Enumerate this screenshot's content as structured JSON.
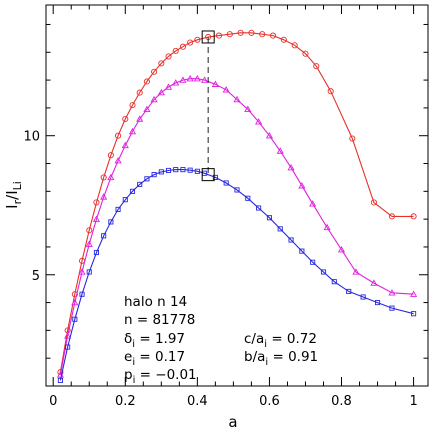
{
  "chart_data": {
    "type": "line",
    "title": "",
    "xlabel": "a",
    "ylabel": "I_r / I_Li",
    "xlim": [
      -0.02,
      1.04
    ],
    "ylim": [
      1,
      14.7
    ],
    "xticks": [
      0,
      0.2,
      0.4,
      0.6,
      0.8,
      1
    ],
    "xtick_labels": [
      "0",
      "0.2",
      "0.4",
      "0.6",
      "0.8",
      "1"
    ],
    "yticks": [
      5,
      10
    ],
    "ytick_labels": [
      "5",
      "10"
    ],
    "grid": false,
    "legend": "none",
    "series": [
      {
        "color": "#e8302a",
        "marker": "circle",
        "x": [
          0.02,
          0.04,
          0.06,
          0.08,
          0.1,
          0.12,
          0.14,
          0.16,
          0.18,
          0.2,
          0.22,
          0.24,
          0.26,
          0.28,
          0.3,
          0.32,
          0.34,
          0.36,
          0.38,
          0.4,
          0.43,
          0.46,
          0.49,
          0.52,
          0.55,
          0.58,
          0.61,
          0.64,
          0.67,
          0.7,
          0.73,
          0.77,
          0.83,
          0.89,
          0.94,
          1.0
        ],
        "y": [
          1.5,
          3.0,
          4.3,
          5.5,
          6.6,
          7.6,
          8.5,
          9.3,
          10.0,
          10.6,
          11.1,
          11.55,
          11.95,
          12.3,
          12.6,
          12.85,
          13.05,
          13.2,
          13.35,
          13.45,
          13.55,
          13.6,
          13.65,
          13.7,
          13.7,
          13.65,
          13.6,
          13.45,
          13.25,
          12.95,
          12.5,
          11.6,
          9.9,
          7.6,
          7.1,
          7.1
        ]
      },
      {
        "color": "#e020e0",
        "marker": "triangle",
        "x": [
          0.02,
          0.04,
          0.06,
          0.08,
          0.1,
          0.12,
          0.14,
          0.16,
          0.18,
          0.2,
          0.22,
          0.24,
          0.26,
          0.28,
          0.3,
          0.32,
          0.34,
          0.36,
          0.38,
          0.4,
          0.42,
          0.45,
          0.48,
          0.51,
          0.54,
          0.57,
          0.6,
          0.63,
          0.66,
          0.69,
          0.72,
          0.76,
          0.8,
          0.84,
          0.89,
          0.94,
          1.0
        ],
        "y": [
          1.4,
          2.8,
          4.0,
          5.1,
          6.1,
          7.0,
          7.8,
          8.5,
          9.1,
          9.65,
          10.15,
          10.6,
          10.95,
          11.3,
          11.55,
          11.75,
          11.9,
          12.0,
          12.05,
          12.05,
          12.0,
          11.85,
          11.65,
          11.3,
          10.95,
          10.5,
          10.0,
          9.45,
          8.85,
          8.2,
          7.55,
          6.7,
          5.9,
          5.1,
          4.7,
          4.35,
          4.3
        ]
      },
      {
        "color": "#2828e0",
        "marker": "square",
        "x": [
          0.02,
          0.04,
          0.06,
          0.08,
          0.1,
          0.12,
          0.14,
          0.16,
          0.18,
          0.2,
          0.22,
          0.24,
          0.26,
          0.28,
          0.3,
          0.32,
          0.34,
          0.36,
          0.38,
          0.4,
          0.42,
          0.45,
          0.48,
          0.51,
          0.54,
          0.57,
          0.6,
          0.63,
          0.66,
          0.69,
          0.72,
          0.75,
          0.78,
          0.82,
          0.86,
          0.9,
          0.94,
          1.0
        ],
        "y": [
          1.2,
          2.4,
          3.4,
          4.3,
          5.1,
          5.8,
          6.4,
          6.9,
          7.35,
          7.7,
          8.0,
          8.25,
          8.45,
          8.6,
          8.7,
          8.75,
          8.78,
          8.78,
          8.76,
          8.72,
          8.65,
          8.5,
          8.3,
          8.05,
          7.75,
          7.4,
          7.05,
          6.65,
          6.25,
          5.85,
          5.45,
          5.1,
          4.75,
          4.4,
          4.2,
          4.0,
          3.8,
          3.6
        ]
      }
    ],
    "highlight": {
      "x": 0.43,
      "y_top": 13.55,
      "y_bottom": 8.6
    },
    "annotations": [
      {
        "text": "halo n 14"
      },
      {
        "text": "n = 81778"
      },
      {
        "text": "δ_i = 1.97"
      },
      {
        "text": "e_i = 0.17"
      },
      {
        "text": "p_i = -0.01"
      },
      {
        "text": "c/a_i = 0.72"
      },
      {
        "text": "b/a_i = 0.91"
      }
    ]
  }
}
